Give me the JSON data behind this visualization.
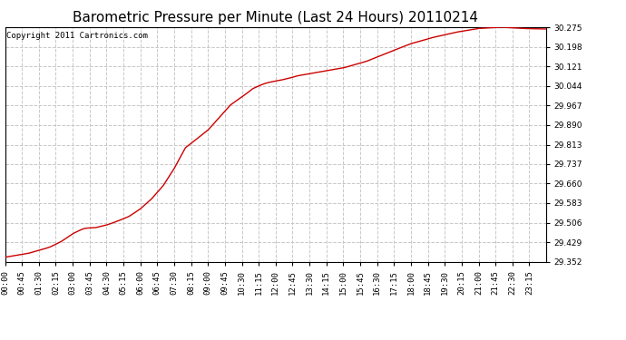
{
  "title": "Barometric Pressure per Minute (Last 24 Hours) 20110214",
  "copyright": "Copyright 2011 Cartronics.com",
  "line_color": "#cc0000",
  "bg_color": "#ffffff",
  "plot_bg_color": "#ffffff",
  "grid_color": "#c8c8c8",
  "yticks": [
    29.352,
    29.429,
    29.506,
    29.583,
    29.66,
    29.737,
    29.813,
    29.89,
    29.967,
    30.044,
    30.121,
    30.198,
    30.275
  ],
  "ylim": [
    29.352,
    30.275
  ],
  "xtick_labels": [
    "00:00",
    "00:45",
    "01:30",
    "02:15",
    "03:00",
    "03:45",
    "04:30",
    "05:15",
    "06:00",
    "06:45",
    "07:30",
    "08:15",
    "09:00",
    "09:45",
    "10:30",
    "11:15",
    "12:00",
    "12:45",
    "13:30",
    "14:15",
    "15:00",
    "15:45",
    "16:30",
    "17:15",
    "18:00",
    "18:45",
    "19:30",
    "20:15",
    "21:00",
    "21:45",
    "22:30",
    "23:15"
  ],
  "title_fontsize": 11,
  "copyright_fontsize": 6.5,
  "tick_fontsize": 6.5,
  "line_width": 1.0,
  "curve_points": {
    "t": [
      0.0,
      0.042,
      0.083,
      0.104,
      0.125,
      0.146,
      0.167,
      0.188,
      0.208,
      0.229,
      0.25,
      0.271,
      0.292,
      0.313,
      0.333,
      0.375,
      0.417,
      0.458,
      0.5,
      0.542,
      0.583,
      0.625,
      0.667,
      0.708,
      0.75,
      0.792,
      0.833,
      0.875,
      0.917,
      0.958,
      1.0
    ],
    "v": [
      29.37,
      29.385,
      29.408,
      29.425,
      29.448,
      29.465,
      29.472,
      29.49,
      29.51,
      29.53,
      29.56,
      29.6,
      29.65,
      29.72,
      29.8,
      29.87,
      29.97,
      30.03,
      30.06,
      30.085,
      30.1,
      30.115,
      30.14,
      30.175,
      30.21,
      30.235,
      30.255,
      30.27,
      30.275,
      30.27,
      30.268
    ]
  }
}
